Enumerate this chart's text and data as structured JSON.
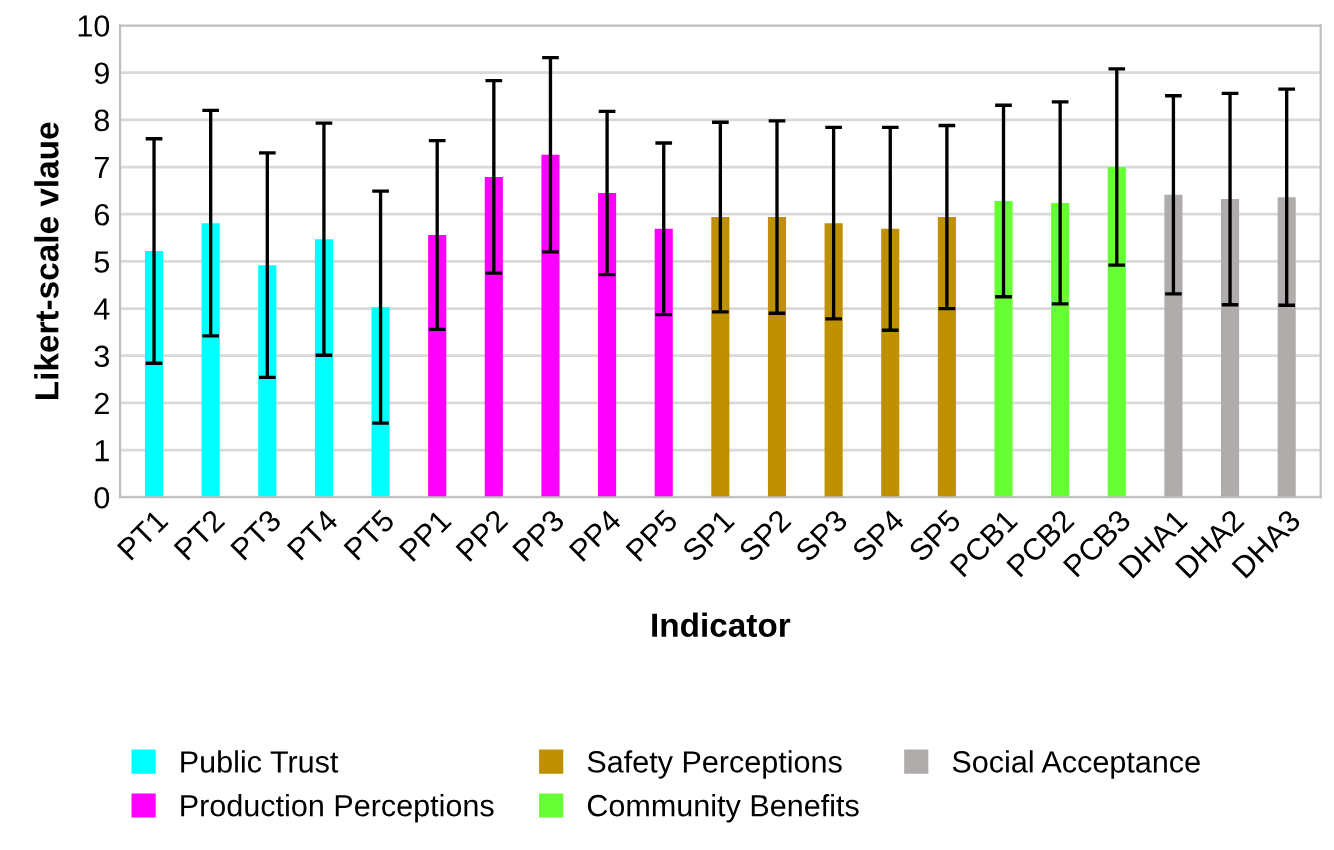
{
  "chart_data": {
    "type": "bar",
    "xlabel": "Indicator",
    "ylabel": "Likert-scale vlaue",
    "categories": [
      "PT1",
      "PT2",
      "PT3",
      "PT4",
      "PT5",
      "PP1",
      "PP2",
      "PP3",
      "PP4",
      "PP5",
      "SP1",
      "SP2",
      "SP3",
      "SP4",
      "SP5",
      "PCB1",
      "PCB2",
      "PCB3",
      "DHA1",
      "DHA2",
      "DHA3"
    ],
    "series": [
      {
        "name": "Public Trust",
        "color": "#00ffff",
        "values": [
          5.22,
          5.81,
          4.92,
          5.47,
          4.03,
          null,
          null,
          null,
          null,
          null,
          null,
          null,
          null,
          null,
          null,
          null,
          null,
          null,
          null,
          null,
          null
        ],
        "errors": [
          2.38,
          2.39,
          2.38,
          2.46,
          2.46,
          null,
          null,
          null,
          null,
          null,
          null,
          null,
          null,
          null,
          null,
          null,
          null,
          null,
          null,
          null,
          null
        ]
      },
      {
        "name": "Production Perceptions",
        "color": "#ff00ff",
        "values": [
          null,
          null,
          null,
          null,
          null,
          5.56,
          6.79,
          7.26,
          6.45,
          5.69,
          null,
          null,
          null,
          null,
          null,
          null,
          null,
          null,
          null,
          null,
          null
        ],
        "errors": [
          null,
          null,
          null,
          null,
          null,
          2.0,
          2.04,
          2.06,
          1.73,
          1.82,
          null,
          null,
          null,
          null,
          null,
          null,
          null,
          null,
          null,
          null,
          null
        ]
      },
      {
        "name": "Safety Perceptions",
        "color": "#bf9000",
        "values": [
          null,
          null,
          null,
          null,
          null,
          null,
          null,
          null,
          null,
          null,
          5.94,
          5.94,
          5.81,
          5.69,
          5.94,
          null,
          null,
          null,
          null,
          null,
          null
        ],
        "errors": [
          null,
          null,
          null,
          null,
          null,
          null,
          null,
          null,
          null,
          null,
          2.01,
          2.04,
          2.03,
          2.15,
          1.94,
          null,
          null,
          null,
          null,
          null,
          null
        ]
      },
      {
        "name": "Community Benefits",
        "color": "#66ff33",
        "values": [
          null,
          null,
          null,
          null,
          null,
          null,
          null,
          null,
          null,
          null,
          null,
          null,
          null,
          null,
          null,
          6.28,
          6.24,
          7.0,
          null,
          null,
          null
        ],
        "errors": [
          null,
          null,
          null,
          null,
          null,
          null,
          null,
          null,
          null,
          null,
          null,
          null,
          null,
          null,
          null,
          2.03,
          2.14,
          2.08,
          null,
          null,
          null
        ]
      },
      {
        "name": "Social Acceptance",
        "color": "#b0acac",
        "values": [
          null,
          null,
          null,
          null,
          null,
          null,
          null,
          null,
          null,
          null,
          null,
          null,
          null,
          null,
          null,
          null,
          null,
          null,
          6.41,
          6.32,
          6.36
        ],
        "errors": [
          null,
          null,
          null,
          null,
          null,
          null,
          null,
          null,
          null,
          null,
          null,
          null,
          null,
          null,
          null,
          null,
          null,
          null,
          2.1,
          2.24,
          2.29
        ]
      }
    ],
    "ylim": [
      0,
      10
    ],
    "yticks": [
      0,
      1,
      2,
      3,
      4,
      5,
      6,
      7,
      8,
      9,
      10
    ],
    "grid": "y",
    "legend": "bottom"
  }
}
